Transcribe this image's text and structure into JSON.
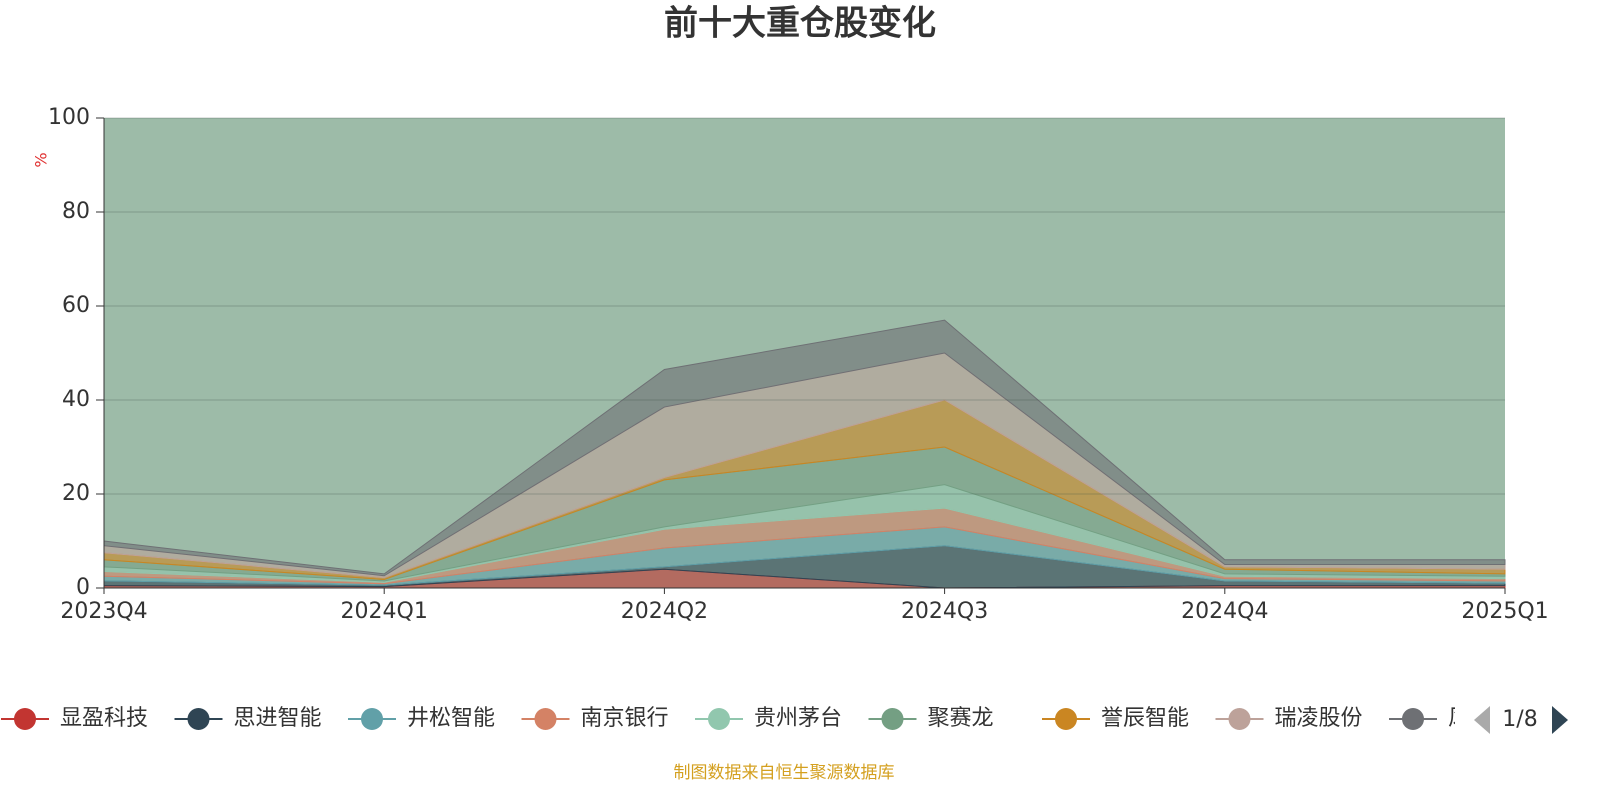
{
  "chart_data": {
    "type": "stacked_area",
    "title": "前十大重仓股变化",
    "y_label": "%",
    "categories": [
      "2023Q4",
      "2024Q1",
      "2024Q2",
      "2024Q3",
      "2024Q4",
      "2025Q1"
    ],
    "series": [
      {
        "name": "显盈科技",
        "color": "#c23531",
        "values": [
          0.5,
          0.3,
          4,
          0,
          0.5,
          0.5
        ]
      },
      {
        "name": "思进智能",
        "color": "#2f4554",
        "values": [
          1,
          0.3,
          0.5,
          9,
          1,
          0.5
        ]
      },
      {
        "name": "井松智能",
        "color": "#61a0a8",
        "values": [
          1,
          0.3,
          4,
          4,
          0.5,
          0.5
        ]
      },
      {
        "name": "南京银行",
        "color": "#d48265",
        "values": [
          1,
          0.3,
          4,
          4,
          0.5,
          0.5
        ]
      },
      {
        "name": "贵州茅台",
        "color": "#91c7ae",
        "values": [
          1,
          0.3,
          0.5,
          5,
          0.5,
          0.5
        ]
      },
      {
        "name": "聚赛龙",
        "color": "#749f83",
        "values": [
          1.5,
          0.3,
          10,
          8,
          1,
          0.5
        ]
      },
      {
        "name": "誉辰智能",
        "color": "#ca8622",
        "values": [
          1.5,
          0.4,
          0.5,
          10,
          0.5,
          1
        ]
      },
      {
        "name": "瑞凌股份",
        "color": "#bda29a",
        "values": [
          1.5,
          0.4,
          15,
          10,
          0.5,
          1
        ]
      },
      {
        "name": "风",
        "color": "#6e7074",
        "values": [
          1,
          0.4,
          8,
          7,
          1,
          1
        ]
      }
    ],
    "ylim": [
      0,
      100
    ],
    "yticks": [
      0,
      20,
      40,
      60,
      80,
      100
    ],
    "grid": true,
    "legend_page": "1/8",
    "source": "制图数据来自恒生聚源数据库"
  }
}
